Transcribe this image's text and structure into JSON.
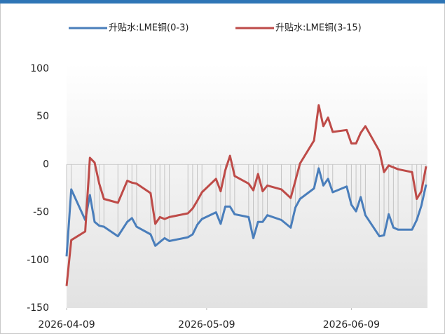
{
  "chart_data": {
    "type": "line",
    "x": [
      "2026-04-09",
      "2026-04-10",
      "2026-04-13",
      "2026-04-14",
      "2026-04-15",
      "2026-04-16",
      "2026-04-17",
      "2026-04-20",
      "2026-04-22",
      "2026-04-23",
      "2026-04-24",
      "2026-04-27",
      "2026-04-28",
      "2026-04-29",
      "2026-04-30",
      "2026-05-01",
      "2026-05-05",
      "2026-05-06",
      "2026-05-07",
      "2026-05-08",
      "2026-05-11",
      "2026-05-12",
      "2026-05-13",
      "2026-05-14",
      "2026-05-15",
      "2026-05-18",
      "2026-05-19",
      "2026-05-20",
      "2026-05-21",
      "2026-05-22",
      "2026-05-25",
      "2026-05-27",
      "2026-05-28",
      "2026-05-29",
      "2026-06-01",
      "2026-06-02",
      "2026-06-03",
      "2026-06-04",
      "2026-06-05",
      "2026-06-08",
      "2026-06-09",
      "2026-06-10",
      "2026-06-11",
      "2026-06-12",
      "2026-06-15",
      "2026-06-16",
      "2026-06-17",
      "2026-06-18",
      "2026-06-19",
      "2026-06-22",
      "2026-06-23",
      "2026-06-24",
      "2026-06-25"
    ],
    "series": [
      {
        "name": "升贴水:LME铜(0-3)",
        "color": "#4a7ebb",
        "values": [
          -96,
          -26,
          -58,
          -32,
          -60,
          -64,
          -65,
          -75,
          -60,
          -56,
          -65,
          -73,
          -85,
          -81,
          -77,
          -80,
          -76,
          -73,
          -63,
          -57,
          -50,
          -62,
          -44,
          -44,
          -52,
          -55,
          -77,
          -60,
          -60,
          -53,
          -58,
          -66,
          -45,
          -36,
          -25,
          -4,
          -22,
          -15,
          -29,
          -23,
          -42,
          -49,
          -34,
          -53,
          -75,
          -74,
          -52,
          -66,
          -68,
          -68,
          -58,
          -43,
          -21
        ]
      },
      {
        "name": "升贴水:LME铜(3-15)",
        "color": "#be4b48",
        "values": [
          -127,
          -79,
          -70,
          7,
          2,
          -20,
          -36,
          -40,
          -17,
          -19,
          -20,
          -30,
          -62,
          -55,
          -57,
          -55,
          -51,
          -46,
          -38,
          -29,
          -15,
          -28,
          -6,
          9,
          -12,
          -20,
          -27,
          -10,
          -28,
          -22,
          -26,
          -35,
          -17,
          1,
          25,
          62,
          40,
          49,
          34,
          36,
          22,
          22,
          33,
          40,
          14,
          -8,
          -1,
          -3,
          -5,
          -8,
          -36,
          -28,
          -2
        ]
      }
    ],
    "xlim": [
      "2026-04-09",
      "2026-06-25"
    ],
    "xticks": [
      "2026-04-09",
      "2026-05-09",
      "2026-06-09"
    ],
    "ylim": [
      -150,
      100
    ],
    "yticks": [
      -150,
      -100,
      -50,
      0,
      50,
      100
    ],
    "drop_lines": true
  }
}
